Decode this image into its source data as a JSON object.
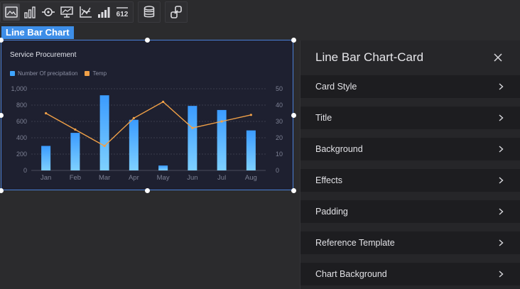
{
  "toolbar": {
    "groups": [
      [
        "image-chart-icon",
        "bar-chart-icon",
        "pie-target-icon",
        "line-board-icon",
        "axis-line-icon",
        "stepped-bar-icon",
        "number-icon"
      ],
      [
        "database-icon"
      ],
      [
        "link-icon"
      ]
    ],
    "number_icon_text": "612"
  },
  "component_label": "Line Bar Chart",
  "card": {
    "title": "Service Procurement",
    "legend": [
      {
        "label": "Number Of precipitation",
        "color": "#3ea5ff"
      },
      {
        "label": "Temp",
        "color": "#f0a047"
      }
    ]
  },
  "chart_data": {
    "type": "bar",
    "title": "Service Procurement",
    "categories": [
      "Jan",
      "Feb",
      "Mar",
      "Apr",
      "May",
      "Jun",
      "Jul",
      "Aug"
    ],
    "series": [
      {
        "name": "Number Of precipitation",
        "type": "bar",
        "axis": "left",
        "values": [
          300,
          460,
          920,
          620,
          60,
          790,
          740,
          490
        ]
      },
      {
        "name": "Temp",
        "type": "line",
        "axis": "right",
        "values": [
          35,
          25,
          15,
          32,
          42,
          26,
          30,
          34
        ]
      }
    ],
    "y_left": {
      "min": 0,
      "max": 1000,
      "ticks": [
        "0",
        "200",
        "400",
        "600",
        "800",
        "1,000"
      ]
    },
    "y_right": {
      "min": 0,
      "max": 50,
      "ticks": [
        "0",
        "10",
        "20",
        "30",
        "40",
        "50"
      ]
    },
    "grid": true,
    "legend_position": "top-left",
    "colors": {
      "bar_top": "#3b9bff",
      "bar_bottom": "#7ed0ff",
      "line": "#f0a047"
    }
  },
  "panel": {
    "title": "Line Bar Chart-Card",
    "sections": [
      "Card Style",
      "Title",
      "Background",
      "Effects",
      "Padding",
      "Reference Template",
      "Chart Background"
    ]
  }
}
